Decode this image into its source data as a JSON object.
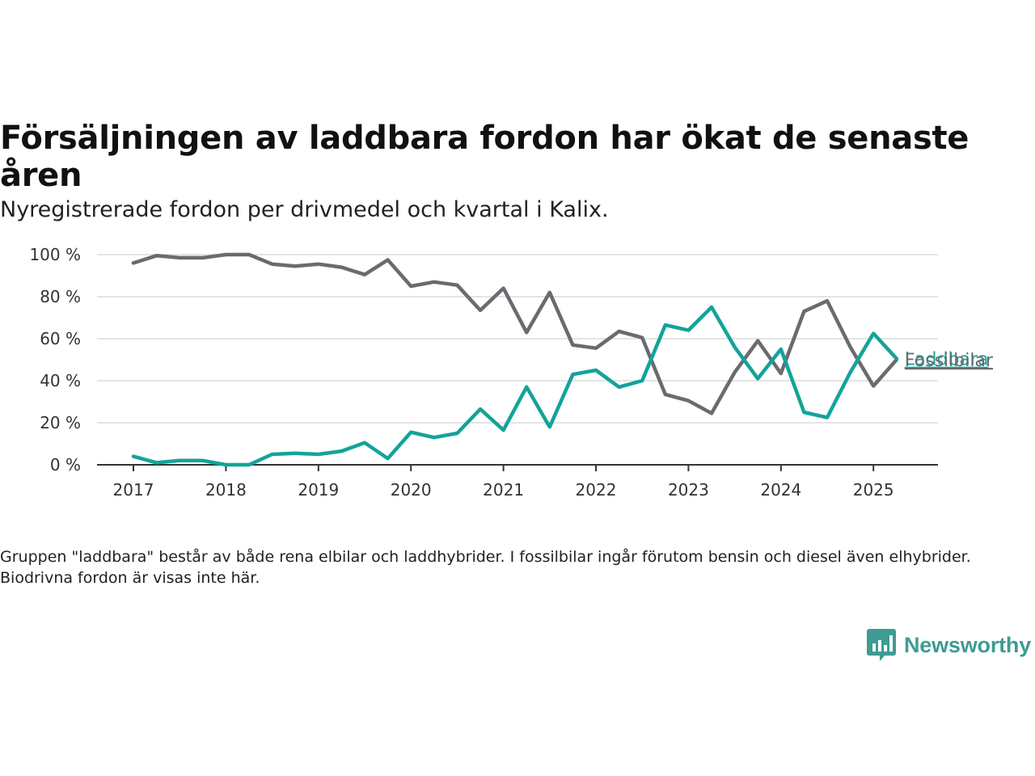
{
  "title": "Försäljningen av laddbara fordon har ökat de senaste åren",
  "subtitle": "Nyregistrerade fordon per drivmedel och kvartal i Kalix.",
  "note": "Gruppen \"laddbara\" består av både rena elbilar och laddhybrider. I fossilbilar ingår förutom bensin och diesel även elhybrider. Biodrivna fordon är visas inte här.",
  "brand": {
    "name": "Newsworthy",
    "icon": "newsworthy-logo-icon",
    "color": "#3e9c93"
  },
  "chart_data": {
    "type": "line",
    "title": "Försäljningen av laddbara fordon har ökat de senaste åren",
    "subtitle": "Nyregistrerade fordon per drivmedel och kvartal i Kalix.",
    "xlabel": "",
    "ylabel": "",
    "x": [
      "2017Q1",
      "2017Q2",
      "2017Q3",
      "2017Q4",
      "2018Q1",
      "2018Q2",
      "2018Q3",
      "2018Q4",
      "2019Q1",
      "2019Q2",
      "2019Q3",
      "2019Q4",
      "2020Q1",
      "2020Q2",
      "2020Q3",
      "2020Q4",
      "2021Q1",
      "2021Q2",
      "2021Q3",
      "2021Q4",
      "2022Q1",
      "2022Q2",
      "2022Q3",
      "2022Q4",
      "2023Q1",
      "2023Q2",
      "2023Q3",
      "2023Q4",
      "2024Q1",
      "2024Q2",
      "2024Q3",
      "2024Q4",
      "2025Q1",
      "2025Q2"
    ],
    "x_ticks": [
      "2017",
      "2018",
      "2019",
      "2020",
      "2021",
      "2022",
      "2023",
      "2024",
      "2025"
    ],
    "y_ticks": [
      "0 %",
      "20 %",
      "40 %",
      "60 %",
      "80 %",
      "100 %"
    ],
    "ylim": [
      0,
      100
    ],
    "grid": true,
    "legend": "line-end labels",
    "series": [
      {
        "name": "Fossilbilar",
        "color": "#6b6a70",
        "values": [
          96,
          99.5,
          98.5,
          98.5,
          100,
          100,
          95.5,
          94.5,
          95.5,
          94,
          90.5,
          97.5,
          85,
          87,
          85.5,
          73.5,
          84,
          63,
          82,
          57,
          55.5,
          63.5,
          60.5,
          33.5,
          30.5,
          24.5,
          44,
          59,
          43.5,
          73,
          78,
          56,
          37.5,
          50
        ]
      },
      {
        "name": "Laddbara",
        "color": "#13a39a",
        "values": [
          4,
          1,
          2,
          2,
          0,
          0,
          5,
          5.5,
          5,
          6.5,
          10.5,
          3,
          15.5,
          13,
          15,
          26.5,
          16.5,
          37,
          18,
          43,
          45,
          37,
          40,
          66.5,
          64,
          75,
          56,
          41,
          55,
          25,
          22.5,
          44,
          62.5,
          50.5
        ]
      }
    ]
  }
}
